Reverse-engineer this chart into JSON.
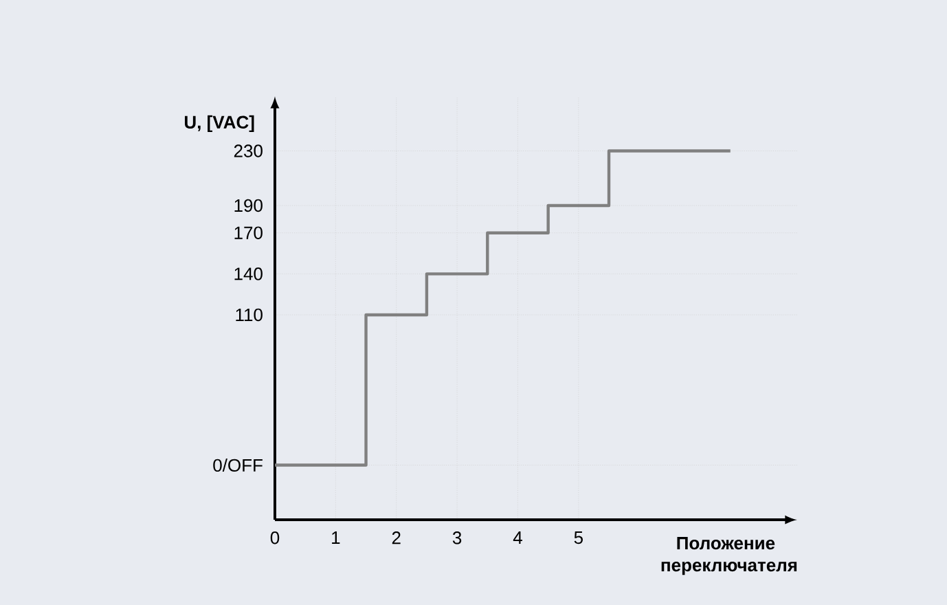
{
  "chart_data": {
    "type": "step",
    "xlabel": "Положение переключателя",
    "ylabel": "U, [VAC]",
    "x": [
      0,
      1.5,
      2.5,
      3.5,
      4.5,
      5.5,
      7.5
    ],
    "series": [
      {
        "color": "#808080",
        "values": [
          0,
          110,
          140,
          170,
          190,
          230,
          230
        ]
      }
    ],
    "xlim": [
      0,
      8.6
    ],
    "ylim": [
      -40,
      270
    ],
    "xticks": [
      0,
      1,
      2,
      3,
      4,
      5
    ],
    "yticks": [
      {
        "value": 0,
        "label": "0/OFF"
      },
      110,
      140,
      170,
      190,
      230
    ],
    "grid": true,
    "marker": "none",
    "line_style": "solid"
  }
}
